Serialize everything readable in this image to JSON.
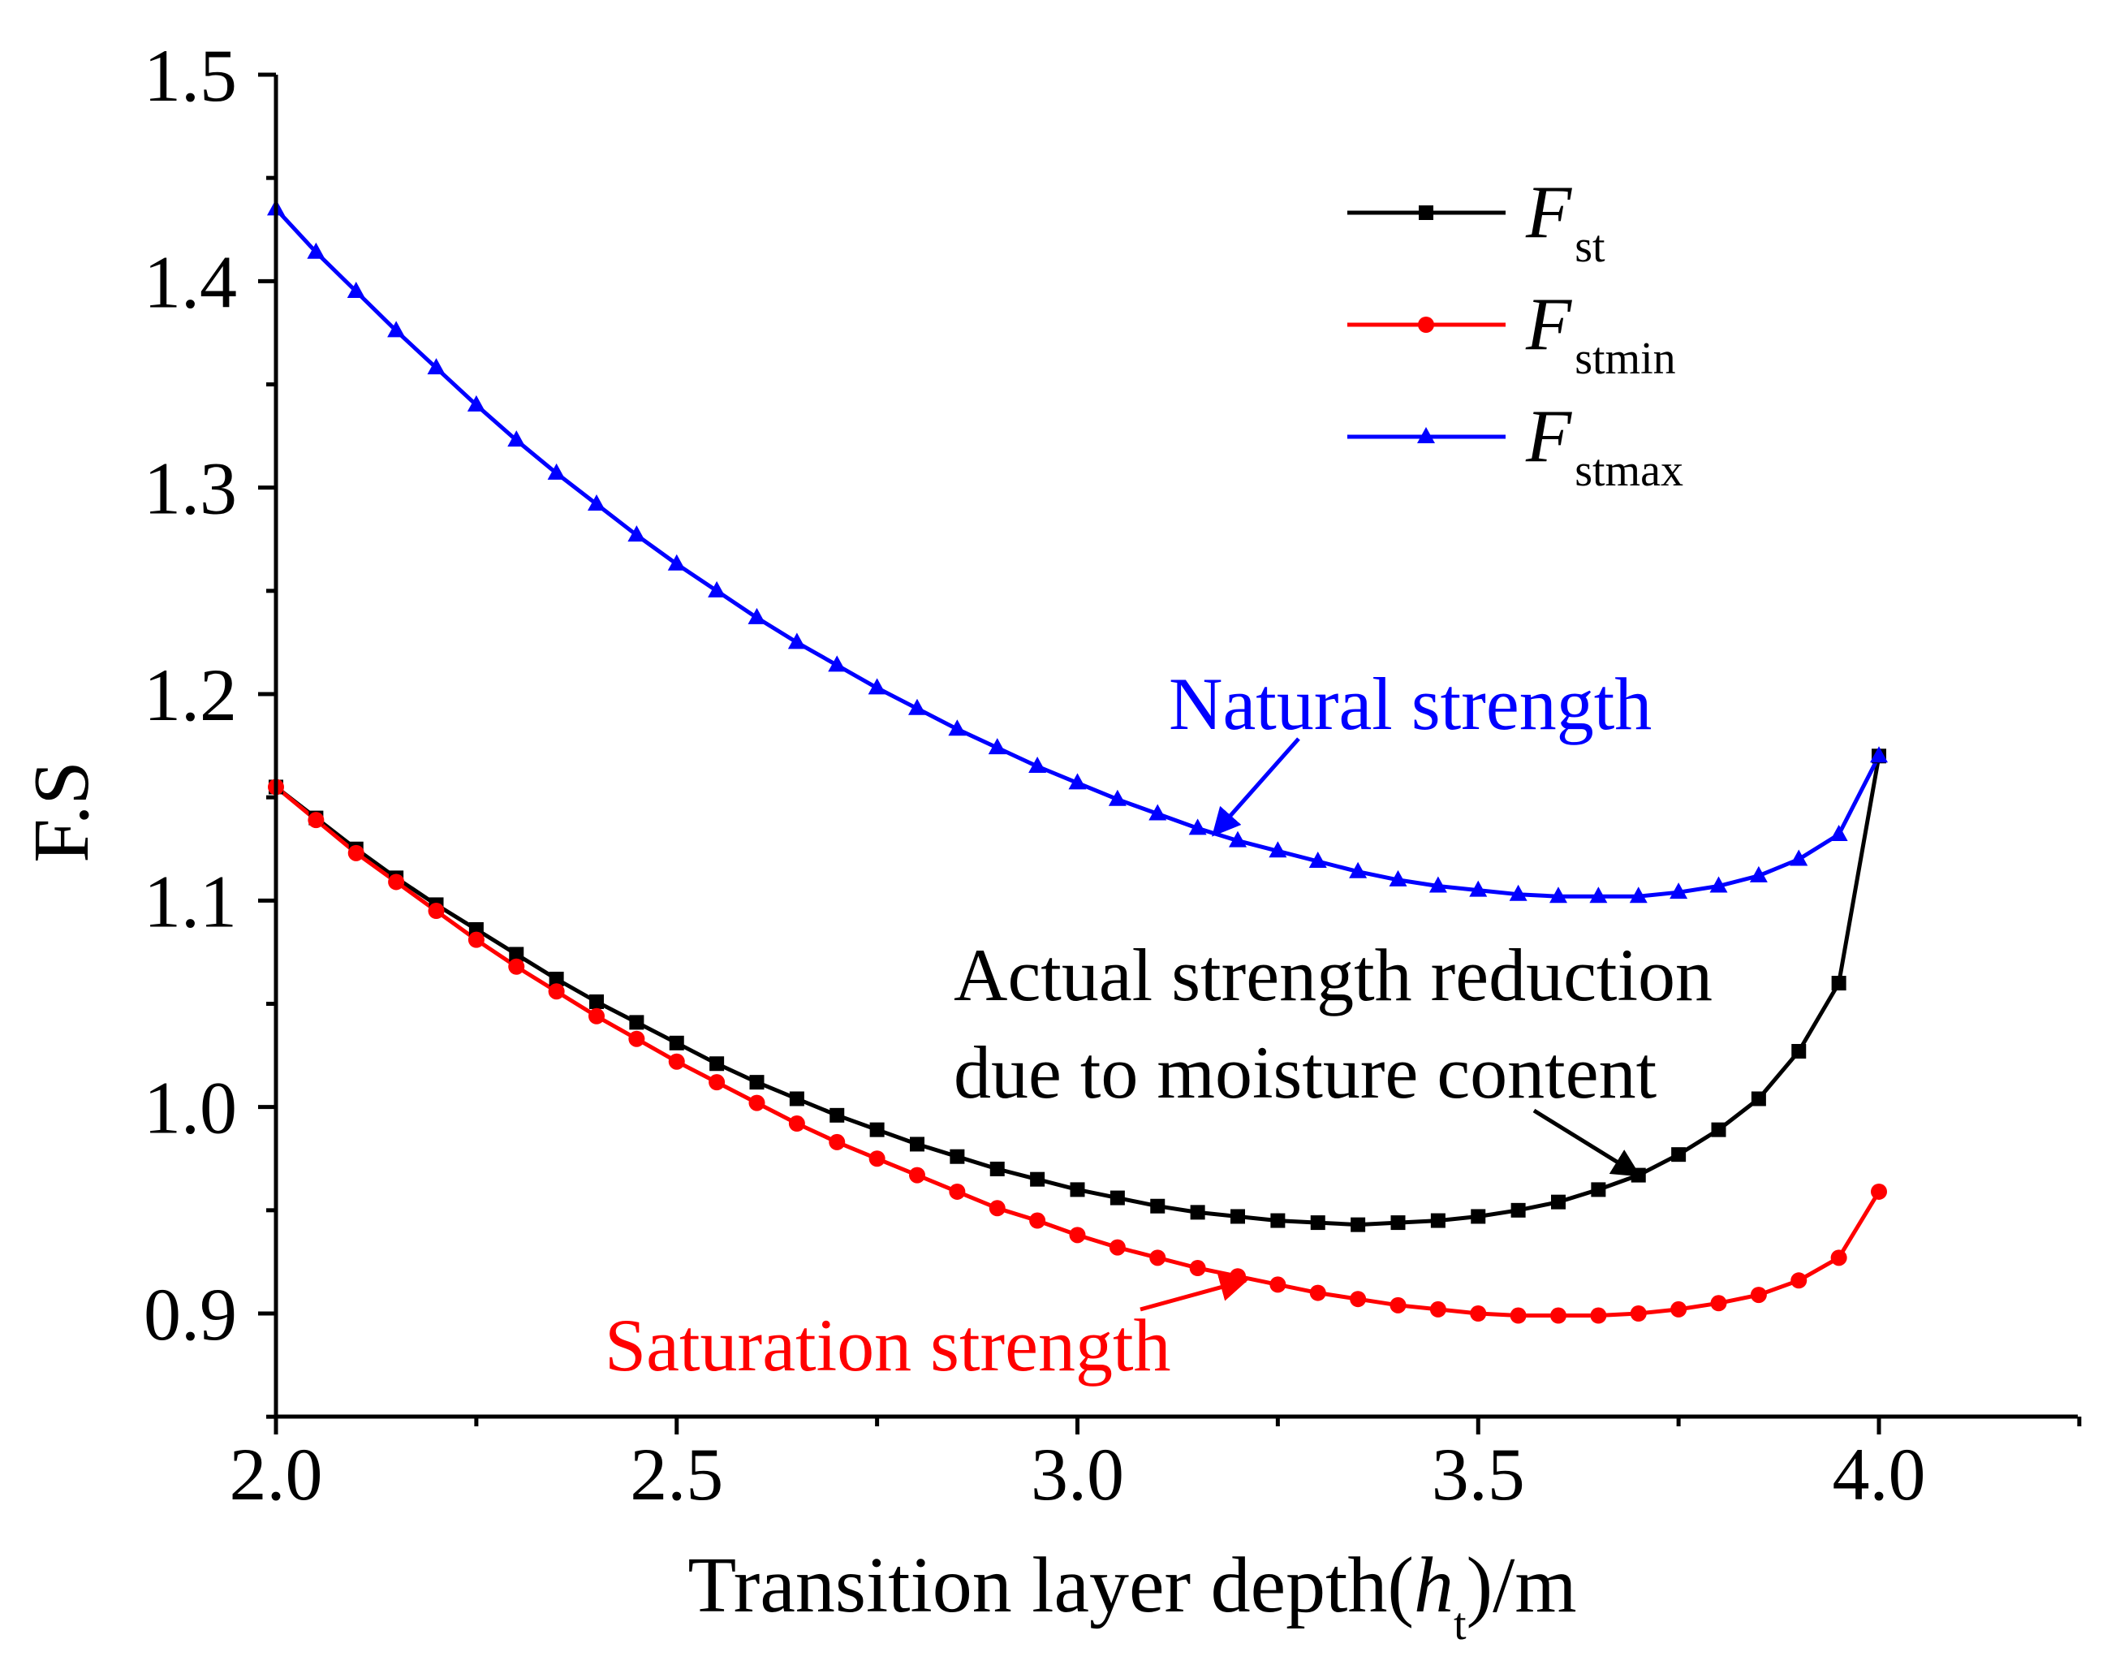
{
  "chart_data": {
    "type": "line",
    "xlabel": {
      "prefix": "Transition layer depth(",
      "var": "h",
      "sub": "t",
      "suffix": ")/m"
    },
    "ylabel": "F.S",
    "xlim": [
      2.0,
      4.25
    ],
    "ylim": [
      0.85,
      1.5
    ],
    "xticks": [
      2.0,
      2.5,
      3.0,
      3.5,
      4.0
    ],
    "xtick_labels": [
      "2.0",
      "2.5",
      "3.0",
      "3.5",
      "4.0"
    ],
    "yticks": [
      0.9,
      1.0,
      1.1,
      1.2,
      1.3,
      1.4,
      1.5
    ],
    "ytick_labels": [
      "0.9",
      "1.0",
      "1.1",
      "1.2",
      "1.3",
      "1.4",
      "1.5"
    ],
    "x": [
      2.0,
      2.05,
      2.1,
      2.15,
      2.2,
      2.25,
      2.3,
      2.35,
      2.4,
      2.45,
      2.5,
      2.55,
      2.6,
      2.65,
      2.7,
      2.75,
      2.8,
      2.85,
      2.9,
      2.95,
      3.0,
      3.05,
      3.1,
      3.15,
      3.2,
      3.25,
      3.3,
      3.35,
      3.4,
      3.45,
      3.5,
      3.55,
      3.6,
      3.65,
      3.7,
      3.75,
      3.8,
      3.85,
      3.9,
      3.95,
      4.0
    ],
    "series": [
      {
        "name": "F_st",
        "label_main": "F",
        "label_sub": "st",
        "color": "#000000",
        "marker": "square",
        "values": [
          1.155,
          1.14,
          1.125,
          1.111,
          1.098,
          1.086,
          1.074,
          1.062,
          1.051,
          1.041,
          1.031,
          1.021,
          1.012,
          1.004,
          0.996,
          0.989,
          0.982,
          0.976,
          0.97,
          0.965,
          0.96,
          0.956,
          0.952,
          0.949,
          0.947,
          0.945,
          0.944,
          0.943,
          0.944,
          0.945,
          0.947,
          0.95,
          0.954,
          0.96,
          0.967,
          0.977,
          0.989,
          1.004,
          1.027,
          1.06,
          1.17
        ]
      },
      {
        "name": "F_stmin",
        "label_main": "F",
        "label_sub": "stmin",
        "color": "#ff0000",
        "marker": "circle",
        "values": [
          1.155,
          1.139,
          1.123,
          1.109,
          1.095,
          1.081,
          1.068,
          1.056,
          1.044,
          1.033,
          1.022,
          1.012,
          1.002,
          0.992,
          0.983,
          0.975,
          0.967,
          0.959,
          0.951,
          0.945,
          0.938,
          0.932,
          0.927,
          0.922,
          0.918,
          0.914,
          0.91,
          0.907,
          0.904,
          0.902,
          0.9,
          0.899,
          0.899,
          0.899,
          0.9,
          0.902,
          0.905,
          0.909,
          0.916,
          0.927,
          0.959
        ]
      },
      {
        "name": "F_stmax",
        "label_main": "F",
        "label_sub": "stmax",
        "color": "#0000ff",
        "marker": "triangle",
        "values": [
          1.435,
          1.414,
          1.395,
          1.376,
          1.358,
          1.34,
          1.323,
          1.307,
          1.292,
          1.277,
          1.263,
          1.25,
          1.237,
          1.225,
          1.214,
          1.203,
          1.193,
          1.183,
          1.174,
          1.165,
          1.157,
          1.149,
          1.142,
          1.135,
          1.129,
          1.124,
          1.119,
          1.114,
          1.11,
          1.107,
          1.105,
          1.103,
          1.102,
          1.102,
          1.102,
          1.104,
          1.107,
          1.112,
          1.12,
          1.132,
          1.17
        ]
      }
    ],
    "legend_position": "top-right",
    "annotations": [
      {
        "lines": [
          "Natural strength"
        ],
        "color": "#0000ff",
        "points_to": {
          "x": 3.17,
          "y": 1.132
        }
      },
      {
        "lines": [
          "Actual strength reduction",
          "due to moisture content"
        ],
        "color": "#000000",
        "points_to": {
          "x": 3.7,
          "y": 0.967
        }
      },
      {
        "lines": [
          "Saturation strength"
        ],
        "color": "#ff0000",
        "points_to": {
          "x": 3.21,
          "y": 0.916
        }
      }
    ]
  }
}
